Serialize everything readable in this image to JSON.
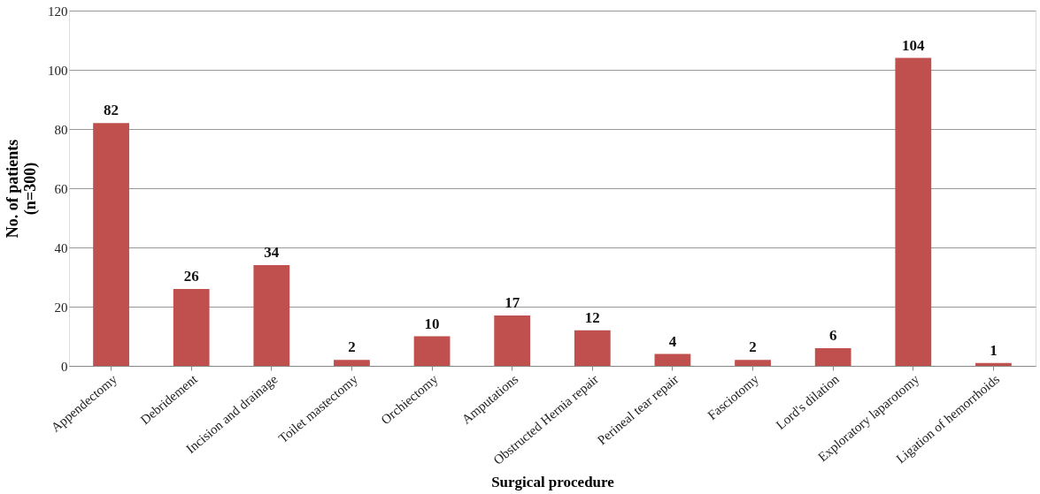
{
  "chart_data": {
    "type": "bar",
    "xlabel": "Surgical procedure",
    "ylabel": "No. of patients\n(n=300)",
    "categories": [
      "Appendectomy",
      "Debridement",
      "Incision and drainage",
      "Toilet mastectomy",
      "Orchiectomy",
      "Amputations",
      "Obstructed Hernia repair",
      "Perineal tear repair",
      "Fasciotomy",
      "Lord's dilation",
      "Exploratory laparotomy",
      "Ligation of  hemorrhoids"
    ],
    "values": [
      82,
      26,
      34,
      2,
      10,
      17,
      12,
      4,
      2,
      6,
      104,
      1
    ],
    "color": "#c0504d",
    "ylim": [
      0,
      120
    ],
    "yticks": [
      0,
      20,
      40,
      60,
      80,
      100,
      120
    ],
    "grid": "y",
    "data_labels": true
  }
}
